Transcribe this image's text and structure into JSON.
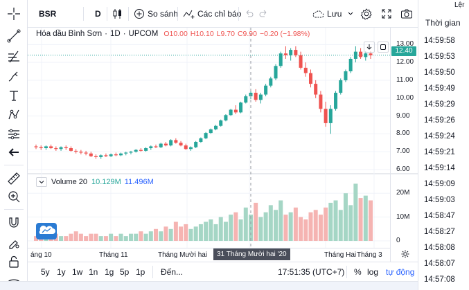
{
  "toolbar": {
    "symbol": "BSR",
    "interval": "D",
    "compare_label": "So sánh",
    "indicators_label": "Các chỉ báo",
    "save_label": "Lưu"
  },
  "legend": {
    "name": "Hóa dầu Bình Sơn",
    "interval": "1D",
    "exchange": "UPCOM",
    "open": "O10.00",
    "high": "H10.10",
    "low": "L9.70",
    "close": "C9.90",
    "change": "−0.20 (−1.98%)"
  },
  "volume_legend": {
    "label": "Volume 20",
    "value1": "10.129M",
    "value2": "11.496M"
  },
  "price_axis": [
    "13.00",
    "12.00",
    "11.00",
    "10.00",
    "9.00",
    "8.00",
    "7.00",
    "6.00"
  ],
  "current_price": "12.40",
  "volume_axis": [
    "20M",
    "10M",
    "0"
  ],
  "time_axis": [
    "áng 10",
    "Tháng 11",
    "Tháng Mười hai",
    "Tháng Hai",
    "Tháng 3"
  ],
  "crosshair_date": "31 Tháng Mười hai '20",
  "bottom_bar": {
    "ranges": [
      "5y",
      "1y",
      "1w",
      "1n",
      "1g",
      "5p",
      "1p"
    ],
    "goto": "Đến...",
    "clock": "17:51:35 (UTC+7)",
    "percent": "%",
    "log": "log",
    "auto": "tự động"
  },
  "right_panel": {
    "header_top": "Lệr",
    "header": "Thời gian",
    "times": [
      "14:59:58",
      "14:59:53",
      "14:59:50",
      "14:59:49",
      "14:59:29",
      "14:59:26",
      "14:59:24",
      "14:59:21",
      "14:59:14",
      "14:59:09",
      "14:59:03",
      "14:58:47",
      "14:58:27",
      "14:58:08",
      "14:58:07",
      "14:57:08"
    ]
  },
  "colors": {
    "up": "#26a69a",
    "down": "#ef5350",
    "vol_up": "#a5d6c5",
    "vol_down": "#f5b4b2",
    "accent": "#2962ff"
  },
  "chart_data": {
    "type": "candlestick",
    "price_range": [
      6,
      13.4
    ],
    "volume_range_millions": [
      0,
      25
    ],
    "candles": [
      [
        7.3,
        7.4,
        7.15,
        7.25
      ],
      [
        7.25,
        7.35,
        7.1,
        7.2
      ],
      [
        7.2,
        7.35,
        7.1,
        7.3
      ],
      [
        7.3,
        7.4,
        7.15,
        7.2
      ],
      [
        7.2,
        7.3,
        7.05,
        7.15
      ],
      [
        7.15,
        7.3,
        7.05,
        7.25
      ],
      [
        7.25,
        7.35,
        7.1,
        7.2
      ],
      [
        7.2,
        7.3,
        7.0,
        7.05
      ],
      [
        7.05,
        7.15,
        6.9,
        7.0
      ],
      [
        7.0,
        7.1,
        6.85,
        6.95
      ],
      [
        6.95,
        7.05,
        6.8,
        6.9
      ],
      [
        6.9,
        7.0,
        6.7,
        6.75
      ],
      [
        6.75,
        6.85,
        6.6,
        6.7
      ],
      [
        6.7,
        6.85,
        6.6,
        6.8
      ],
      [
        6.8,
        6.9,
        6.7,
        6.75
      ],
      [
        6.75,
        6.9,
        6.7,
        6.85
      ],
      [
        6.85,
        6.95,
        6.75,
        6.8
      ],
      [
        6.8,
        6.95,
        6.75,
        6.9
      ],
      [
        6.9,
        7.0,
        6.8,
        6.95
      ],
      [
        6.95,
        7.05,
        6.85,
        7.0
      ],
      [
        7.0,
        7.15,
        6.95,
        7.1
      ],
      [
        7.1,
        7.2,
        7.0,
        7.05
      ],
      [
        7.05,
        7.25,
        7.0,
        7.2
      ],
      [
        7.2,
        7.35,
        7.1,
        7.3
      ],
      [
        7.3,
        7.4,
        7.2,
        7.25
      ],
      [
        7.25,
        7.5,
        7.2,
        7.45
      ],
      [
        7.45,
        7.55,
        7.3,
        7.35
      ],
      [
        7.35,
        7.7,
        7.3,
        7.65
      ],
      [
        7.65,
        7.75,
        7.45,
        7.5
      ],
      [
        7.5,
        7.6,
        7.3,
        7.35
      ],
      [
        7.35,
        7.45,
        7.1,
        7.15
      ],
      [
        7.15,
        7.3,
        7.05,
        7.25
      ],
      [
        7.25,
        7.6,
        7.2,
        7.55
      ],
      [
        7.55,
        7.8,
        7.5,
        7.75
      ],
      [
        7.75,
        8.1,
        7.7,
        8.05
      ],
      [
        8.05,
        8.3,
        8.0,
        8.25
      ],
      [
        8.25,
        8.5,
        8.2,
        8.45
      ],
      [
        8.45,
        8.8,
        8.4,
        8.75
      ],
      [
        8.75,
        9.1,
        8.7,
        9.05
      ],
      [
        9.05,
        9.4,
        9.0,
        9.35
      ],
      [
        9.35,
        9.6,
        9.1,
        9.2
      ],
      [
        9.2,
        9.8,
        9.15,
        9.75
      ],
      [
        9.75,
        10.2,
        9.7,
        10.1
      ],
      [
        10.1,
        10.4,
        9.95,
        10.3
      ],
      [
        10.3,
        10.5,
        9.8,
        9.9
      ],
      [
        9.9,
        10.3,
        9.7,
        10.2
      ],
      [
        10.2,
        10.8,
        10.1,
        10.7
      ],
      [
        10.7,
        11.2,
        10.6,
        11.1
      ],
      [
        11.1,
        11.9,
        11.0,
        11.8
      ],
      [
        11.8,
        12.6,
        11.7,
        12.5
      ],
      [
        12.5,
        12.9,
        12.2,
        12.4
      ],
      [
        12.4,
        12.8,
        12.1,
        12.7
      ],
      [
        12.7,
        12.9,
        12.3,
        12.4
      ],
      [
        12.4,
        12.6,
        11.6,
        11.7
      ],
      [
        11.7,
        12.0,
        11.2,
        11.4
      ],
      [
        11.4,
        11.6,
        10.6,
        10.8
      ],
      [
        10.8,
        11.0,
        10.0,
        10.2
      ],
      [
        10.2,
        10.4,
        9.2,
        9.4
      ],
      [
        9.4,
        9.8,
        8.4,
        8.6
      ],
      [
        8.6,
        9.6,
        8.0,
        9.4
      ],
      [
        9.4,
        10.4,
        9.3,
        10.3
      ],
      [
        10.3,
        11.1,
        10.2,
        11.0
      ],
      [
        11.0,
        11.6,
        10.9,
        11.5
      ],
      [
        11.5,
        12.3,
        11.4,
        12.2
      ],
      [
        12.2,
        12.9,
        12.0,
        12.6
      ],
      [
        12.6,
        12.8,
        12.2,
        12.3
      ],
      [
        12.3,
        12.6,
        12.1,
        12.5
      ],
      [
        12.5,
        12.6,
        12.2,
        12.4
      ]
    ],
    "volumes_millions": [
      2,
      3,
      2,
      2,
      3,
      2,
      2,
      3,
      4,
      3,
      2,
      3,
      3,
      2,
      2,
      3,
      2,
      3,
      2,
      3,
      3,
      4,
      3,
      4,
      5,
      4,
      6,
      5,
      8,
      6,
      7,
      5,
      6,
      7,
      8,
      9,
      7,
      10,
      8,
      11,
      12,
      9,
      14,
      11,
      16,
      10,
      12,
      15,
      13,
      17,
      11,
      12,
      14,
      10,
      9,
      12,
      13,
      11,
      14,
      16,
      17,
      13,
      20,
      15,
      24,
      18,
      19,
      17
    ]
  }
}
